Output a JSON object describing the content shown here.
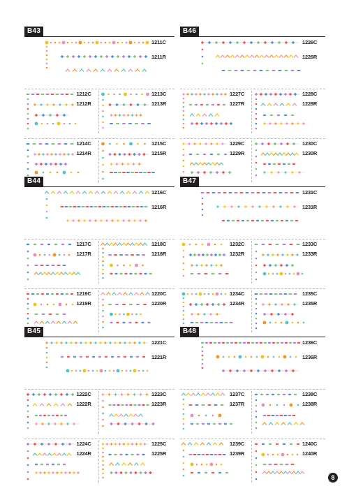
{
  "sections": [
    {
      "tag": "B43",
      "codes": [
        [
          "1211C",
          "1211R"
        ],
        [
          "1212C",
          "1212R"
        ],
        [
          "1213C",
          "1213R"
        ],
        [
          "1214C",
          "1214R"
        ],
        [
          "1215C",
          "1215R"
        ]
      ]
    },
    {
      "tag": "B46",
      "codes": [
        [
          "1226C",
          "1226R"
        ],
        [
          "1227C",
          "1227R"
        ],
        [
          "1228C",
          "1228R"
        ],
        [
          "1229C",
          "1229R"
        ],
        [
          "1230C",
          "1230R"
        ]
      ]
    },
    {
      "tag": "B44",
      "codes": [
        [
          "1216C",
          "1216R"
        ],
        [
          "1217C",
          "1217R"
        ],
        [
          "1218C",
          "1218R"
        ],
        [
          "1219C",
          "1219R"
        ],
        [
          "1220C",
          "1220R"
        ]
      ]
    },
    {
      "tag": "B47",
      "codes": [
        [
          "1231C",
          "1231R"
        ],
        [
          "1232C",
          "1232R"
        ],
        [
          "1233C",
          "1233R"
        ],
        [
          "1234C",
          "1234R"
        ],
        [
          "1235C",
          "1235R"
        ]
      ]
    },
    {
      "tag": "B45",
      "codes": [
        [
          "1221C",
          "1221R"
        ],
        [
          "1222C",
          "1222R"
        ],
        [
          "1223C",
          "1223R"
        ],
        [
          "1224C",
          "1224R"
        ],
        [
          "1225C",
          "1225R"
        ]
      ]
    },
    {
      "tag": "B48",
      "codes": [
        [
          "1236C",
          "1236R"
        ],
        [
          "1237C",
          "1237R"
        ],
        [
          "1238C",
          "1238R"
        ],
        [
          "1239C",
          "1239R"
        ],
        [
          "1240C",
          "1240R"
        ]
      ]
    }
  ],
  "page_number": "8",
  "colors": {
    "ink": "#231f20",
    "yellow": "#f4c20d",
    "blue": "#4a90d9",
    "pink": "#f08bb4",
    "green": "#7cc576",
    "orange": "#f7941d",
    "purple": "#b57edc",
    "teal": "#4fc3c8"
  }
}
